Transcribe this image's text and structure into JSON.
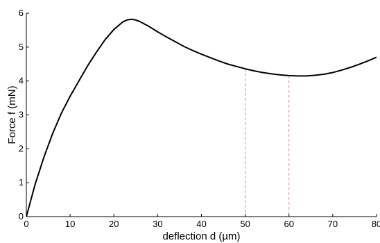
{
  "chart_data": {
    "type": "line",
    "title": "",
    "xlabel": "deflection d (µm)",
    "ylabel": "Force f (mN)",
    "xlim": [
      0,
      80
    ],
    "ylim": [
      0,
      6
    ],
    "xticks": [
      "0",
      "10",
      "20",
      "30",
      "40",
      "50",
      "60",
      "70",
      "80"
    ],
    "yticks": [
      "0",
      "1",
      "2",
      "3",
      "4",
      "5",
      "6"
    ],
    "grid": false,
    "legend": "none",
    "series": [
      {
        "color": "#000000",
        "x": [
          0,
          2,
          4,
          6,
          8,
          10,
          12,
          14,
          16,
          18,
          20,
          22,
          23,
          24,
          25,
          26,
          28,
          30,
          32,
          34,
          36,
          38,
          40,
          42,
          44,
          46,
          48,
          50,
          52,
          54,
          56,
          58,
          60,
          62,
          64,
          66,
          68,
          70,
          72,
          74,
          76,
          78,
          80
        ],
        "y": [
          0,
          0.95,
          1.75,
          2.45,
          3.05,
          3.55,
          4.0,
          4.45,
          4.85,
          5.22,
          5.52,
          5.74,
          5.8,
          5.82,
          5.8,
          5.75,
          5.61,
          5.45,
          5.3,
          5.16,
          5.02,
          4.9,
          4.79,
          4.69,
          4.59,
          4.5,
          4.43,
          4.36,
          4.3,
          4.25,
          4.21,
          4.18,
          4.16,
          4.15,
          4.15,
          4.17,
          4.2,
          4.25,
          4.32,
          4.4,
          4.49,
          4.59,
          4.7
        ]
      }
    ],
    "reference_lines": [
      {
        "x": 50,
        "color": "#e08a8a",
        "style": "dashed"
      },
      {
        "x": 60,
        "color": "#e08a8a",
        "style": "dashed"
      }
    ]
  }
}
